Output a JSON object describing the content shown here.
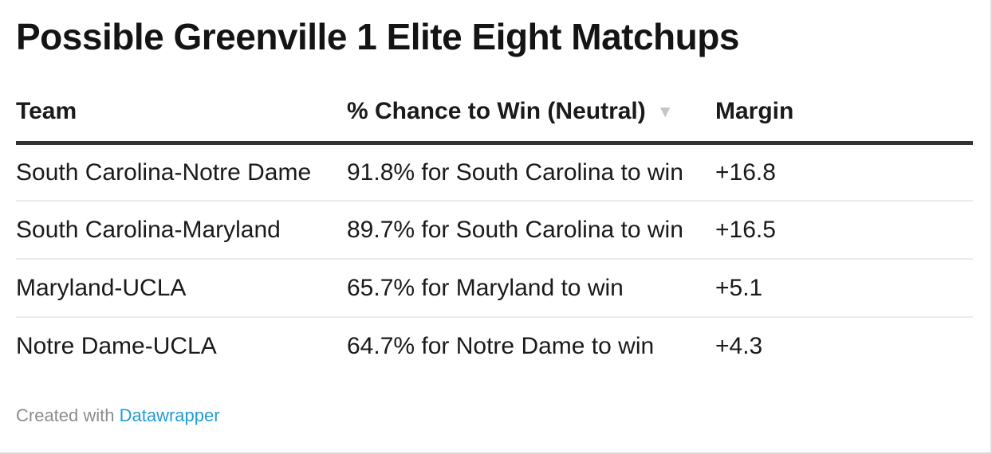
{
  "title": "Possible Greenville 1 Elite Eight Matchups",
  "table": {
    "columns": [
      {
        "label": "Team",
        "sortable": true
      },
      {
        "label": "% Chance to Win (Neutral)",
        "sortable": true,
        "sorted": "desc"
      },
      {
        "label": "Margin",
        "sortable": true
      }
    ],
    "rows": [
      {
        "team": "South Carolina-Notre Dame",
        "chance": "91.8% for South Carolina to win",
        "margin": "+16.8"
      },
      {
        "team": "South Carolina-Maryland",
        "chance": "89.7% for South Carolina to win",
        "margin": "+16.5"
      },
      {
        "team": "Maryland-UCLA",
        "chance": "65.7% for Maryland to win",
        "margin": "+5.1"
      },
      {
        "team": "Notre Dame-UCLA",
        "chance": "64.7% for Notre Dame to win",
        "margin": "+4.3"
      }
    ]
  },
  "icons": {
    "sort_desc": "▼"
  },
  "footer": {
    "credit_prefix": "Created with ",
    "credit_link": "Datawrapper"
  },
  "colors": {
    "text": "#1a1a1a",
    "header_rule": "#333333",
    "row_divider": "#ebebeb",
    "sort_icon": "#c6c6c6",
    "footer_text": "#8d8d8d",
    "link": "#229bd8",
    "frame_border": "#dcdcdc"
  },
  "chart_data": {
    "type": "table",
    "title": "Possible Greenville 1 Elite Eight Matchups",
    "columns": [
      "Team",
      "% Chance to Win (Neutral)",
      "Margin"
    ],
    "rows": [
      [
        "South Carolina-Notre Dame",
        "91.8% for South Carolina to win",
        "+16.8"
      ],
      [
        "South Carolina-Maryland",
        "89.7% for South Carolina to win",
        "+16.5"
      ],
      [
        "Maryland-UCLA",
        "65.7% for Maryland to win",
        "+5.1"
      ],
      [
        "Notre Dame-UCLA",
        "64.7% for Notre Dame to win",
        "+4.3"
      ]
    ],
    "numeric": {
      "win_probability_pct": [
        91.8,
        89.7,
        65.7,
        64.7
      ],
      "margin": [
        16.8,
        16.5,
        5.1,
        4.3
      ]
    },
    "sort": {
      "column": "% Chance to Win (Neutral)",
      "direction": "desc"
    },
    "legend_position": "none",
    "grid": "row-dividers"
  }
}
